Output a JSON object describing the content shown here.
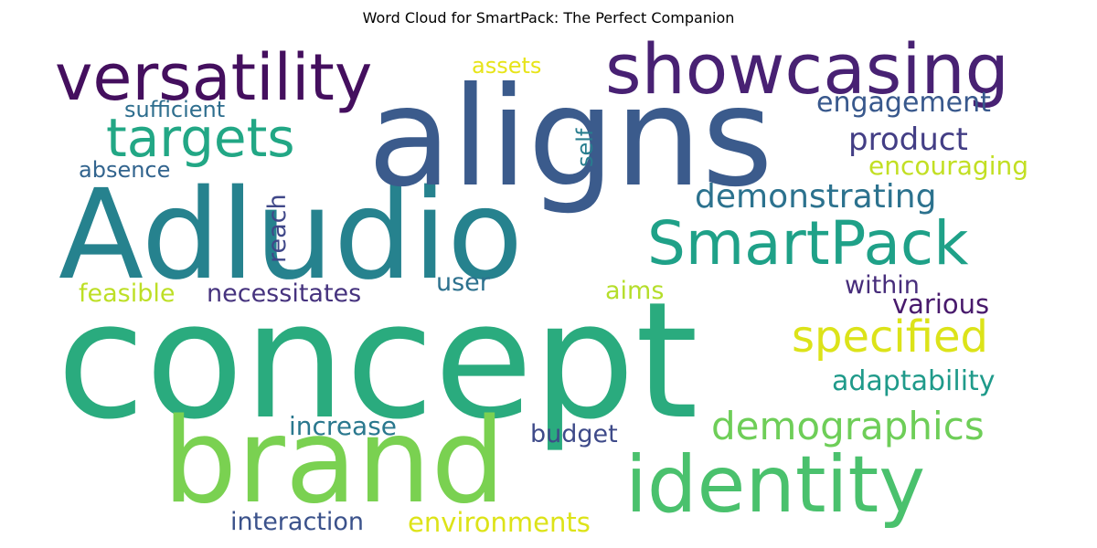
{
  "title": "Word Cloud for SmartPack: The Perfect Companion",
  "words": [
    {
      "text": "concept",
      "color": "#2aab7e"
    },
    {
      "text": "Adludio",
      "color": "#26828e"
    },
    {
      "text": "aligns",
      "color": "#3b5b8c"
    },
    {
      "text": "brand",
      "color": "#7ad151"
    },
    {
      "text": "showcasing",
      "color": "#482173"
    },
    {
      "text": "versatility",
      "color": "#440f5e"
    },
    {
      "text": "identity",
      "color": "#4ac16d"
    },
    {
      "text": "SmartPack",
      "color": "#1fa188"
    },
    {
      "text": "targets",
      "color": "#22a785"
    },
    {
      "text": "specified",
      "color": "#dce319"
    },
    {
      "text": "demographics",
      "color": "#6ece58"
    },
    {
      "text": "demonstrating",
      "color": "#2c728e"
    },
    {
      "text": "product",
      "color": "#433e85"
    },
    {
      "text": "engagement",
      "color": "#38588c"
    },
    {
      "text": "encouraging",
      "color": "#c2df23"
    },
    {
      "text": "adaptability",
      "color": "#1f9a8a"
    },
    {
      "text": "increase",
      "color": "#2a788e"
    },
    {
      "text": "environments",
      "color": "#dde318"
    },
    {
      "text": "interaction",
      "color": "#3b528b"
    },
    {
      "text": "budget",
      "color": "#3e4a89"
    },
    {
      "text": "various",
      "color": "#481a6c"
    },
    {
      "text": "within",
      "color": "#472d7b"
    },
    {
      "text": "aims",
      "color": "#b5de2b"
    },
    {
      "text": "user",
      "color": "#2d718e"
    },
    {
      "text": "necessitates",
      "color": "#46337e"
    },
    {
      "text": "feasible",
      "color": "#bddf26"
    },
    {
      "text": "reach",
      "color": "#3f4788"
    },
    {
      "text": "absence",
      "color": "#32648e"
    },
    {
      "text": "sufficient",
      "color": "#2e6e8e"
    },
    {
      "text": "assets",
      "color": "#e7e419"
    },
    {
      "text": "self",
      "color": "#287d8e"
    }
  ]
}
